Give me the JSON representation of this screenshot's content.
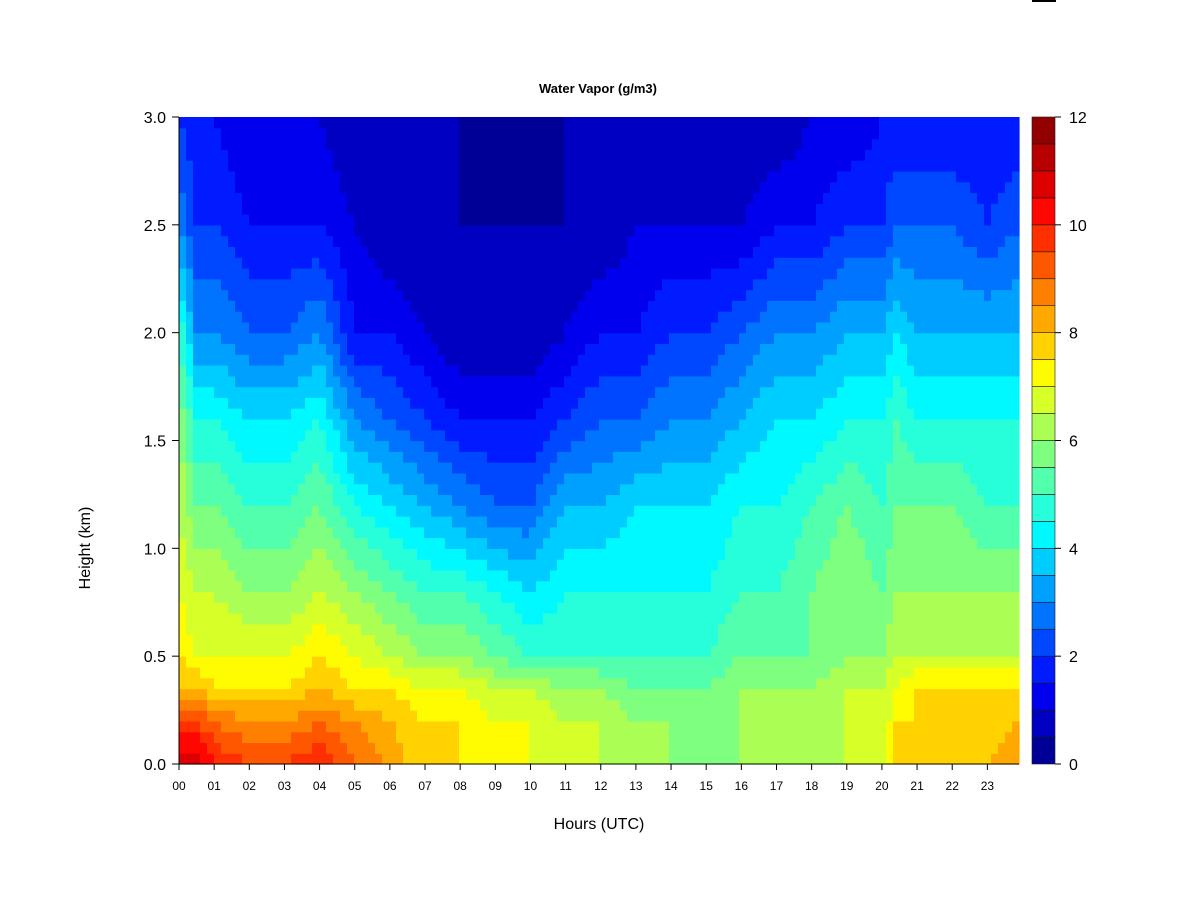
{
  "chart_data": {
    "type": "heatmap",
    "title": "Water Vapor (g/m3)",
    "xlabel": "Hours (UTC)",
    "ylabel": "Height (km)",
    "xlim": [
      0,
      23.9
    ],
    "ylim": [
      0.0,
      3.0
    ],
    "x_tick_labels": [
      "00",
      "01",
      "02",
      "03",
      "04",
      "05",
      "06",
      "07",
      "08",
      "09",
      "10",
      "11",
      "12",
      "13",
      "14",
      "15",
      "16",
      "17",
      "18",
      "19",
      "20",
      "21",
      "22",
      "23"
    ],
    "y_tick_labels": [
      "0.0",
      "0.5",
      "1.0",
      "1.5",
      "2.0",
      "2.5",
      "3.0"
    ],
    "colorbar": {
      "range": [
        0,
        12
      ],
      "step": 0.5,
      "tick_labels": [
        "0",
        "2",
        "4",
        "6",
        "8",
        "10",
        "12"
      ]
    },
    "grid": false,
    "heights_km": [
      0.0,
      0.2,
      0.35,
      0.5,
      0.8,
      1.2,
      1.6,
      2.0,
      2.5,
      3.0
    ],
    "profiles": [
      {
        "hour": 0.0,
        "values": [
          11.0,
          9.5,
          8.0,
          7.5,
          7.0,
          6.5,
          6.0,
          5.0,
          3.0,
          2.0
        ]
      },
      {
        "hour": 0.5,
        "values": [
          11.0,
          9.5,
          8.0,
          7.0,
          6.5,
          5.5,
          4.5,
          3.0,
          2.0,
          1.5
        ]
      },
      {
        "hour": 1.0,
        "values": [
          10.0,
          9.0,
          7.5,
          7.0,
          6.5,
          5.5,
          4.5,
          3.0,
          2.0,
          1.5
        ]
      },
      {
        "hour": 2.0,
        "values": [
          9.5,
          8.5,
          7.5,
          7.0,
          6.0,
          5.0,
          4.0,
          2.5,
          1.5,
          1.0
        ]
      },
      {
        "hour": 3.0,
        "values": [
          9.5,
          8.5,
          7.5,
          7.0,
          6.0,
          5.0,
          4.0,
          2.5,
          1.5,
          1.0
        ]
      },
      {
        "hour": 4.0,
        "values": [
          10.0,
          9.0,
          8.0,
          7.5,
          6.5,
          5.5,
          4.5,
          3.0,
          1.5,
          1.0
        ]
      },
      {
        "hour": 5.0,
        "values": [
          9.0,
          8.5,
          7.5,
          7.0,
          6.0,
          4.5,
          3.0,
          1.5,
          1.0,
          0.5
        ]
      },
      {
        "hour": 6.0,
        "values": [
          8.5,
          8.0,
          7.5,
          6.5,
          5.5,
          4.0,
          2.5,
          1.5,
          0.5,
          0.5
        ]
      },
      {
        "hour": 7.0,
        "values": [
          7.5,
          7.5,
          7.0,
          6.0,
          5.0,
          3.5,
          2.0,
          1.0,
          0.5,
          0.5
        ]
      },
      {
        "hour": 8.0,
        "values": [
          7.5,
          7.5,
          7.0,
          6.0,
          5.0,
          3.0,
          1.5,
          0.5,
          0.5,
          0.5
        ]
      },
      {
        "hour": 9.0,
        "values": [
          7.0,
          7.0,
          6.5,
          5.5,
          4.5,
          2.5,
          1.5,
          0.5,
          0.5,
          0.0
        ]
      },
      {
        "hour": 10.0,
        "values": [
          7.0,
          7.0,
          6.5,
          5.0,
          4.0,
          2.5,
          1.5,
          0.5,
          0.5,
          0.0
        ]
      },
      {
        "hour": 11.0,
        "values": [
          6.5,
          6.5,
          6.0,
          5.0,
          4.5,
          3.5,
          2.0,
          1.0,
          0.5,
          0.5
        ]
      },
      {
        "hour": 12.0,
        "values": [
          6.5,
          6.5,
          6.0,
          5.0,
          4.5,
          3.5,
          2.5,
          1.5,
          0.5,
          0.5
        ]
      },
      {
        "hour": 13.0,
        "values": [
          6.0,
          6.0,
          5.5,
          5.0,
          4.5,
          4.0,
          2.5,
          1.5,
          1.0,
          0.5
        ]
      },
      {
        "hour": 14.0,
        "values": [
          6.0,
          6.0,
          5.5,
          5.0,
          4.5,
          4.0,
          3.0,
          2.0,
          1.0,
          0.5
        ]
      },
      {
        "hour": 15.0,
        "values": [
          5.5,
          5.5,
          5.5,
          5.0,
          4.5,
          4.0,
          3.0,
          2.0,
          1.0,
          0.5
        ]
      },
      {
        "hour": 16.0,
        "values": [
          6.0,
          6.0,
          6.0,
          5.5,
          5.0,
          4.5,
          3.5,
          2.5,
          1.0,
          0.5
        ]
      },
      {
        "hour": 17.0,
        "values": [
          6.0,
          6.0,
          6.0,
          5.5,
          5.0,
          4.5,
          4.0,
          3.0,
          1.5,
          0.5
        ]
      },
      {
        "hour": 18.0,
        "values": [
          6.0,
          6.0,
          6.0,
          5.5,
          5.5,
          5.0,
          4.0,
          3.0,
          1.5,
          1.0
        ]
      },
      {
        "hour": 19.0,
        "values": [
          6.5,
          6.5,
          6.5,
          6.0,
          6.0,
          5.5,
          4.5,
          3.5,
          2.0,
          1.0
        ]
      },
      {
        "hour": 20.0,
        "values": [
          6.5,
          6.5,
          6.5,
          6.0,
          5.5,
          5.0,
          4.5,
          3.5,
          2.0,
          1.5
        ]
      },
      {
        "hour": 20.4,
        "values": [
          7.5,
          7.5,
          7.0,
          6.5,
          6.0,
          5.5,
          5.0,
          4.0,
          2.5,
          1.5
        ]
      },
      {
        "hour": 21.0,
        "values": [
          7.5,
          7.5,
          7.5,
          6.5,
          6.0,
          5.5,
          4.5,
          3.5,
          2.5,
          1.5
        ]
      },
      {
        "hour": 22.0,
        "values": [
          7.5,
          7.5,
          7.5,
          6.5,
          6.0,
          5.5,
          4.5,
          3.5,
          2.5,
          1.5
        ]
      },
      {
        "hour": 23.0,
        "values": [
          8.0,
          7.5,
          7.5,
          6.5,
          6.0,
          5.0,
          4.5,
          3.5,
          2.0,
          1.5
        ]
      },
      {
        "hour": 23.9,
        "values": [
          8.5,
          8.0,
          7.5,
          6.5,
          6.0,
          5.0,
          4.5,
          3.5,
          2.5,
          1.5
        ]
      }
    ]
  }
}
